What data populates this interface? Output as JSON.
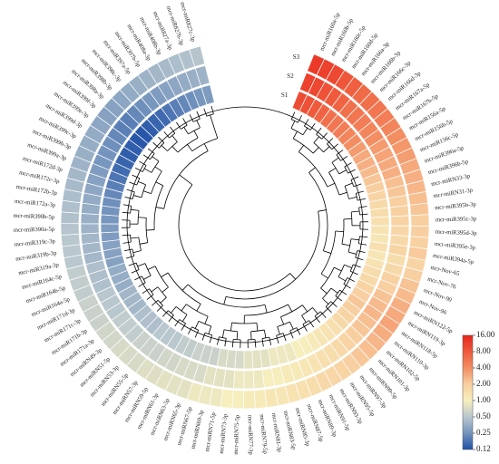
{
  "chart_data": {
    "type": "heatmap",
    "layout": "circular",
    "title": "",
    "ring_labels": [
      "S1",
      "S2",
      "S3"
    ],
    "color_scale": {
      "ticks": [
        "16.00",
        "8.00",
        "4.00",
        "2.00",
        "1.00",
        "0.50",
        "0.25",
        "0.12"
      ],
      "colors": [
        "#e8231c",
        "#ef5a3c",
        "#f38e63",
        "#f8cfa0",
        "#f6eebd",
        "#b9c7ce",
        "#7494bd",
        "#1f50a8"
      ]
    },
    "rows": [
      {
        "name": "mcr-miR160a-5p",
        "values": [
          9.5,
          11.0,
          12.0
        ]
      },
      {
        "name": "mcr-miR160b-5p",
        "values": [
          9.0,
          10.0,
          11.0
        ]
      },
      {
        "name": "mcr-miR160c-5p",
        "values": [
          8.0,
          9.0,
          10.0
        ]
      },
      {
        "name": "mcr-miR160d-5p",
        "values": [
          7.0,
          8.0,
          8.5
        ]
      },
      {
        "name": "mcr-miR166a-3p",
        "values": [
          6.0,
          7.0,
          7.5
        ]
      },
      {
        "name": "mcr-miR166b-3p",
        "values": [
          5.5,
          6.0,
          6.5
        ]
      },
      {
        "name": "mcr-miR166c-3p",
        "values": [
          5.0,
          5.5,
          6.0
        ]
      },
      {
        "name": "mcr-miR166d-3p",
        "values": [
          4.5,
          5.0,
          5.5
        ]
      },
      {
        "name": "mcr-miR167a-5p",
        "values": [
          4.0,
          4.5,
          5.0
        ]
      },
      {
        "name": "mcr-miR167b-5p",
        "values": [
          3.5,
          4.0,
          4.5
        ]
      },
      {
        "name": "mcr-miR156a-5p",
        "values": [
          3.0,
          3.5,
          4.0
        ]
      },
      {
        "name": "mcr-miR156b-5p",
        "values": [
          2.8,
          3.2,
          3.6
        ]
      },
      {
        "name": "mcr-miR156c-5p",
        "values": [
          2.5,
          3.0,
          3.4
        ]
      },
      {
        "name": "mcr-miR396a-5p",
        "values": [
          2.2,
          2.8,
          3.0
        ]
      },
      {
        "name": "mcr-miR396b-5p",
        "values": [
          2.0,
          2.4,
          2.8
        ]
      },
      {
        "name": "mcr-miRN33-3p",
        "values": [
          1.8,
          2.2,
          2.6
        ]
      },
      {
        "name": "mcr-miRN31-3p",
        "values": [
          1.6,
          2.0,
          2.4
        ]
      },
      {
        "name": "mcr-miR395b-3p",
        "values": [
          1.5,
          1.9,
          2.2
        ]
      },
      {
        "name": "mcr-miR395c-3p",
        "values": [
          1.4,
          1.8,
          2.0
        ]
      },
      {
        "name": "mcr-miR395d-3p",
        "values": [
          1.3,
          1.7,
          2.0
        ]
      },
      {
        "name": "mcr-miR395e-3p",
        "values": [
          1.2,
          1.6,
          1.9
        ]
      },
      {
        "name": "mcr-miR394a-5p",
        "values": [
          1.4,
          1.8,
          2.1
        ]
      },
      {
        "name": "mcr-Nov-65",
        "values": [
          1.2,
          1.5,
          1.8
        ]
      },
      {
        "name": "mcr-Nov-76",
        "values": [
          1.3,
          1.6,
          2.0
        ]
      },
      {
        "name": "mcr-Nov-90",
        "values": [
          1.5,
          1.9,
          2.3
        ]
      },
      {
        "name": "mcr-Nov-96",
        "values": [
          1.6,
          2.0,
          2.5
        ]
      },
      {
        "name": "mcr-miRN122-5p",
        "values": [
          1.8,
          2.3,
          2.8
        ]
      },
      {
        "name": "mcr-miRN119-3p",
        "values": [
          2.0,
          2.5,
          3.0
        ]
      },
      {
        "name": "mcr-miRN118-5p",
        "values": [
          2.2,
          2.6,
          3.2
        ]
      },
      {
        "name": "mcr-miRN110-3p",
        "values": [
          2.0,
          2.4,
          2.9
        ]
      },
      {
        "name": "mcr-miRN102-5p",
        "values": [
          1.8,
          2.2,
          2.6
        ]
      },
      {
        "name": "mcr-miRN101-3p",
        "values": [
          1.6,
          2.0,
          2.4
        ]
      },
      {
        "name": "mcr-miRN99-5p",
        "values": [
          1.4,
          1.8,
          2.2
        ]
      },
      {
        "name": "mcr-miRN97-3p",
        "values": [
          1.3,
          1.6,
          2.0
        ]
      },
      {
        "name": "mcr-miRN95-5p",
        "values": [
          1.2,
          1.5,
          1.8
        ]
      },
      {
        "name": "mcr-miRN93-3p",
        "values": [
          1.1,
          1.4,
          1.7
        ]
      },
      {
        "name": "mcr-miRN91-5p",
        "values": [
          1.0,
          1.3,
          1.6
        ]
      },
      {
        "name": "mcr-miRN89-3p",
        "values": [
          1.0,
          1.2,
          1.5
        ]
      },
      {
        "name": "mcr-miRN87-5p",
        "values": [
          0.9,
          1.1,
          1.4
        ]
      },
      {
        "name": "mcr-miRN85-3p",
        "values": [
          0.9,
          1.1,
          1.3
        ]
      },
      {
        "name": "mcr-miRN83-5p",
        "values": [
          0.9,
          1.0,
          1.2
        ]
      },
      {
        "name": "mcr-miRN81-3p",
        "values": [
          0.8,
          1.0,
          1.2
        ]
      },
      {
        "name": "mcr-miRN79-5p",
        "values": [
          0.8,
          0.9,
          1.1
        ]
      },
      {
        "name": "mcr-miRN77-3p",
        "values": [
          0.8,
          0.9,
          1.1
        ]
      },
      {
        "name": "mcr-miRN75-5p",
        "values": [
          0.7,
          0.9,
          1.0
        ]
      },
      {
        "name": "mcr-miRN73-3p",
        "values": [
          0.7,
          0.8,
          1.0
        ]
      },
      {
        "name": "mcr-miRN71-5p",
        "values": [
          0.7,
          0.8,
          0.9
        ]
      },
      {
        "name": "mcr-miRN69-3p",
        "values": [
          0.6,
          0.8,
          0.9
        ]
      },
      {
        "name": "mcr-miRN67-5p",
        "values": [
          0.6,
          0.7,
          0.9
        ]
      },
      {
        "name": "mcr-miRN65-3p",
        "values": [
          0.6,
          0.7,
          0.8
        ]
      },
      {
        "name": "mcr-miRN63-5p",
        "values": [
          0.55,
          0.7,
          0.8
        ]
      },
      {
        "name": "mcr-miRN61-3p",
        "values": [
          0.55,
          0.65,
          0.8
        ]
      },
      {
        "name": "mcr-miRN59-5p",
        "values": [
          0.5,
          0.65,
          0.75
        ]
      },
      {
        "name": "mcr-miRN57-3p",
        "values": [
          0.5,
          0.6,
          0.75
        ]
      },
      {
        "name": "mcr-miRN55-5p",
        "values": [
          0.5,
          0.6,
          0.7
        ]
      },
      {
        "name": "mcr-miRN53-3p",
        "values": [
          0.45,
          0.6,
          0.7
        ]
      },
      {
        "name": "mcr-miRN51-5p",
        "values": [
          0.45,
          0.55,
          0.7
        ]
      },
      {
        "name": "mcr-miRN49-3p",
        "values": [
          0.45,
          0.55,
          0.65
        ]
      },
      {
        "name": "mcr-miR171a-3p",
        "values": [
          0.4,
          0.55,
          0.65
        ]
      },
      {
        "name": "mcr-miR171b-3p",
        "values": [
          0.4,
          0.5,
          0.6
        ]
      },
      {
        "name": "mcr-miR171c-3p",
        "values": [
          0.4,
          0.5,
          0.6
        ]
      },
      {
        "name": "mcr-miR171d-3p",
        "values": [
          0.35,
          0.5,
          0.6
        ]
      },
      {
        "name": "mcr-miR164a-5p",
        "values": [
          0.35,
          0.45,
          0.55
        ]
      },
      {
        "name": "mcr-miR164b-5p",
        "values": [
          0.35,
          0.45,
          0.55
        ]
      },
      {
        "name": "mcr-miR164c-5p",
        "values": [
          0.3,
          0.45,
          0.55
        ]
      },
      {
        "name": "mcr-miR319a-3p",
        "values": [
          0.3,
          0.4,
          0.5
        ]
      },
      {
        "name": "mcr-miR319b-3p",
        "values": [
          0.3,
          0.4,
          0.5
        ]
      },
      {
        "name": "mcr-miR319c-3p",
        "values": [
          0.28,
          0.4,
          0.5
        ]
      },
      {
        "name": "mcr-miR390a-5p",
        "values": [
          0.28,
          0.38,
          0.48
        ]
      },
      {
        "name": "mcr-miR390b-5p",
        "values": [
          0.26,
          0.36,
          0.46
        ]
      },
      {
        "name": "mcr-miR172a-3p",
        "values": [
          0.25,
          0.35,
          0.45
        ]
      },
      {
        "name": "mcr-miR172b-3p",
        "values": [
          0.24,
          0.34,
          0.44
        ]
      },
      {
        "name": "mcr-miR172c-3p",
        "values": [
          0.22,
          0.32,
          0.42
        ]
      },
      {
        "name": "mcr-miR172d-3p",
        "values": [
          0.2,
          0.3,
          0.4
        ]
      },
      {
        "name": "mcr-miR399a-3p",
        "values": [
          0.18,
          0.28,
          0.38
        ]
      },
      {
        "name": "mcr-miR399b-3p",
        "values": [
          0.16,
          0.26,
          0.36
        ]
      },
      {
        "name": "mcr-miR399c-3p",
        "values": [
          0.15,
          0.25,
          0.35
        ]
      },
      {
        "name": "mcr-miR399d-3p",
        "values": [
          0.14,
          0.24,
          0.34
        ]
      },
      {
        "name": "mcr-miR399e-3p",
        "values": [
          0.14,
          0.22,
          0.32
        ]
      },
      {
        "name": "mcr-miR399f-3p",
        "values": [
          0.13,
          0.2,
          0.3
        ]
      },
      {
        "name": "mcr-miR398a-3p",
        "values": [
          0.13,
          0.2,
          0.3
        ]
      },
      {
        "name": "mcr-miR398b-3p",
        "values": [
          0.14,
          0.22,
          0.32
        ]
      },
      {
        "name": "mcr-miR398c-3p",
        "values": [
          0.15,
          0.24,
          0.34
        ]
      },
      {
        "name": "mcr-miR397a-5p",
        "values": [
          0.16,
          0.26,
          0.36
        ]
      },
      {
        "name": "mcr-miR397b-5p",
        "values": [
          0.18,
          0.28,
          0.38
        ]
      },
      {
        "name": "mcr-miR408a-3p",
        "values": [
          0.2,
          0.3,
          0.4
        ]
      },
      {
        "name": "mcr-miR408b-3p",
        "values": [
          0.22,
          0.32,
          0.42
        ]
      },
      {
        "name": "mcr-miR827a-3p",
        "values": [
          0.24,
          0.34,
          0.44
        ]
      },
      {
        "name": "mcr-miR827b-3p",
        "values": [
          0.26,
          0.36,
          0.46
        ]
      },
      {
        "name": "mcr-miR827c-3p",
        "values": [
          0.28,
          0.38,
          0.48
        ]
      }
    ]
  }
}
